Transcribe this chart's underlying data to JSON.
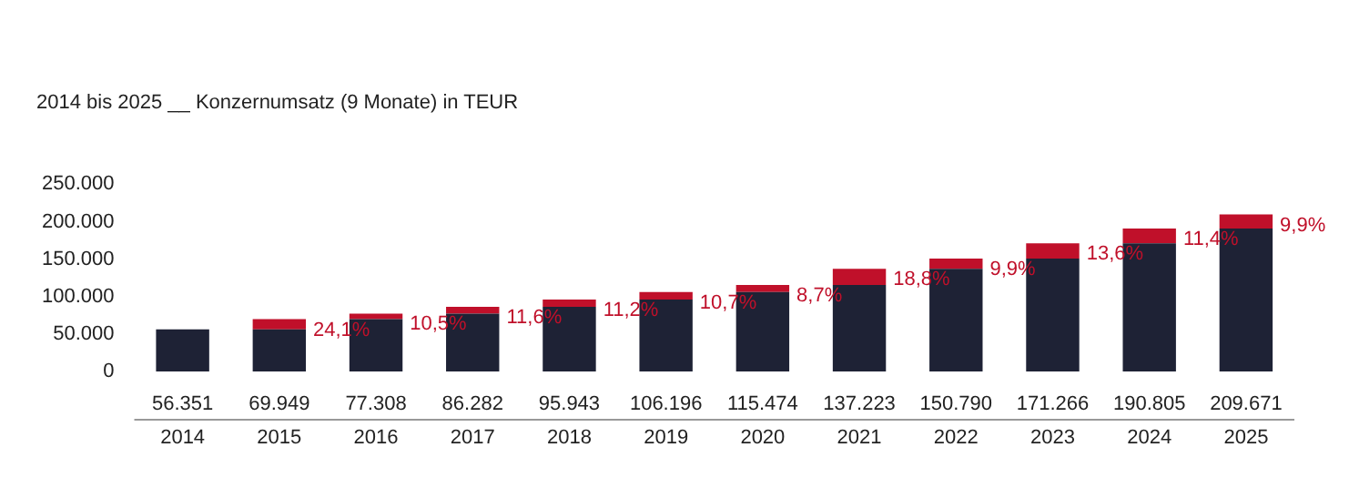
{
  "chart_data": {
    "type": "bar",
    "title": "2014 bis 2025 __ Konzernumsatz (9 Monate) in TEUR",
    "categories": [
      "2014",
      "2015",
      "2016",
      "2017",
      "2018",
      "2019",
      "2020",
      "2021",
      "2022",
      "2023",
      "2024",
      "2025"
    ],
    "stacked": true,
    "series": [
      {
        "color": "#1e2235",
        "values": [
          56351,
          56351,
          69949,
          77308,
          86282,
          95943,
          106196,
          115474,
          137223,
          150790,
          171266,
          190805
        ]
      },
      {
        "color": "#c0102a",
        "values": [
          null,
          13598,
          7359,
          8974,
          9661,
          10253,
          9278,
          21749,
          13567,
          20476,
          19539,
          18866
        ]
      }
    ],
    "annotations": [
      {
        "text": "24,1%",
        "x": "2015",
        "y": 69949
      },
      {
        "text": "10,5%",
        "x": "2016",
        "y": 77308
      },
      {
        "text": "11,6%",
        "x": "2017",
        "y": 86282
      },
      {
        "text": "11,2%",
        "x": "2018",
        "y": 95943
      },
      {
        "text": "10,7%",
        "x": "2019",
        "y": 106196
      },
      {
        "text": "8,7%",
        "x": "2020",
        "y": 115474
      },
      {
        "text": "18,8%",
        "x": "2021",
        "y": 137223
      },
      {
        "text": "9,9%",
        "x": "2022",
        "y": 150790
      },
      {
        "text": "13,6%",
        "x": "2023",
        "y": 171266
      },
      {
        "text": "11,4%",
        "x": "2024",
        "y": 190805
      },
      {
        "text": "9,9%",
        "x": "2025",
        "y": 209671
      }
    ],
    "totals": [
      "56.351",
      "69.949",
      "77.308",
      "86.282",
      "95.943",
      "106.196",
      "115.474",
      "137.223",
      "150.790",
      "171.266",
      "190.805",
      "209.671"
    ],
    "ylim": [
      0,
      250000
    ],
    "yticks": [
      {
        "value": 0,
        "label": "0"
      },
      {
        "value": 50000,
        "label": "50.000"
      },
      {
        "value": 100000,
        "label": "100.000"
      },
      {
        "value": 150000,
        "label": "150.000"
      },
      {
        "value": 200000,
        "label": "200.000"
      },
      {
        "value": 250000,
        "label": "250.000"
      }
    ],
    "grid": false,
    "legend": false
  }
}
